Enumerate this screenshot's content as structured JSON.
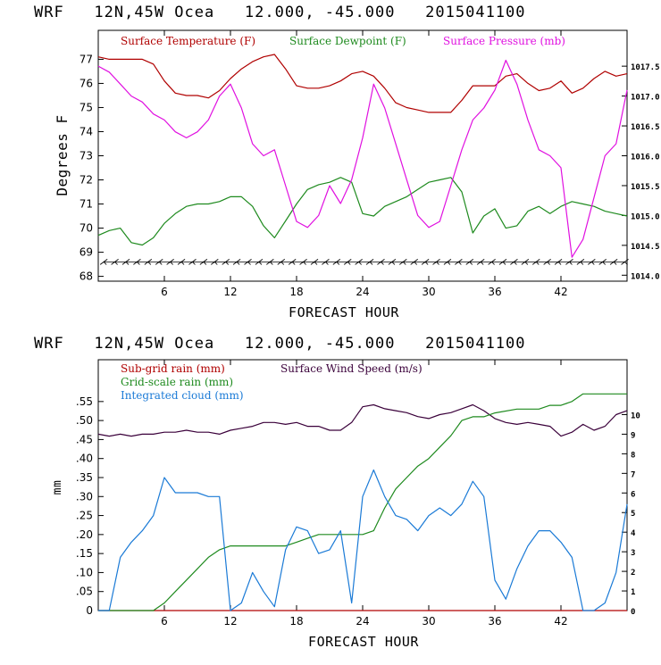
{
  "colors": {
    "temperature": "#b00000",
    "dewpoint": "#1e8a1e",
    "pressure": "#e010e0",
    "wind_speed": "#3a003a",
    "subgrid_rain": "#b00000",
    "gridscale_rain": "#1e8a1e",
    "cloud": "#1a7ad6",
    "axis": "#000000"
  },
  "chart_data": [
    {
      "type": "line",
      "title": "WRF   12N,45W Ocea   12.000, -45.000   2015041100",
      "xlabel": "FORECAST HOUR",
      "ylabel": "Degrees F",
      "xlim": [
        0,
        48
      ],
      "ylim": [
        67.8,
        78.2
      ],
      "y2lim": [
        1013.9,
        1018.1
      ],
      "xticks": [
        6,
        12,
        18,
        24,
        30,
        36,
        42
      ],
      "yticks": [
        68,
        69,
        70,
        71,
        72,
        73,
        74,
        75,
        76,
        77
      ],
      "y2ticks": [
        1014.0,
        1014.5,
        1015.0,
        1015.5,
        1016.0,
        1016.5,
        1017.0,
        1017.5
      ],
      "legend": [
        "Surface Temperature (F)",
        "Surface Dewpoint (F)",
        "Surface Pressure (mb)"
      ],
      "series": [
        {
          "name": "Surface Temperature (F)",
          "axis": "left",
          "color_key": "temperature",
          "x": [
            0,
            1,
            2,
            3,
            4,
            5,
            6,
            7,
            8,
            9,
            10,
            11,
            12,
            13,
            14,
            15,
            16,
            17,
            18,
            19,
            20,
            21,
            22,
            23,
            24,
            25,
            26,
            27,
            28,
            29,
            30,
            31,
            32,
            33,
            34,
            35,
            36,
            37,
            38,
            39,
            40,
            41,
            42,
            43,
            44,
            45,
            46,
            47,
            48
          ],
          "y": [
            77.1,
            77.0,
            77.0,
            77.0,
            77.0,
            76.8,
            76.1,
            75.6,
            75.5,
            75.5,
            75.4,
            75.7,
            76.2,
            76.6,
            76.9,
            77.1,
            77.2,
            76.6,
            75.9,
            75.8,
            75.8,
            75.9,
            76.1,
            76.4,
            76.5,
            76.3,
            75.8,
            75.2,
            75.0,
            74.9,
            74.8,
            74.8,
            74.8,
            75.3,
            75.9,
            75.9,
            75.9,
            76.3,
            76.4,
            76.0,
            75.7,
            75.8,
            76.1,
            75.6,
            75.8,
            76.2,
            76.5,
            76.3,
            76.4
          ]
        },
        {
          "name": "Surface Dewpoint (F)",
          "axis": "left",
          "color_key": "dewpoint",
          "x": [
            0,
            1,
            2,
            3,
            4,
            5,
            6,
            7,
            8,
            9,
            10,
            11,
            12,
            13,
            14,
            15,
            16,
            17,
            18,
            19,
            20,
            21,
            22,
            23,
            24,
            25,
            26,
            27,
            28,
            29,
            30,
            31,
            32,
            33,
            34,
            35,
            36,
            37,
            38,
            39,
            40,
            41,
            42,
            43,
            44,
            45,
            46,
            47,
            48
          ],
          "y": [
            69.7,
            69.9,
            70.0,
            69.4,
            69.3,
            69.6,
            70.2,
            70.6,
            70.9,
            71.0,
            71.0,
            71.1,
            71.3,
            71.3,
            70.9,
            70.1,
            69.6,
            70.3,
            71.0,
            71.6,
            71.8,
            71.9,
            72.1,
            71.9,
            70.6,
            70.5,
            70.9,
            71.1,
            71.3,
            71.6,
            71.9,
            72.0,
            72.1,
            71.5,
            69.8,
            70.5,
            70.8,
            70.0,
            70.1,
            70.7,
            70.9,
            70.6,
            70.9,
            71.1,
            71.0,
            70.9,
            70.7,
            70.6,
            70.5
          ]
        },
        {
          "name": "Surface Pressure (mb)",
          "axis": "right",
          "color_key": "pressure",
          "x": [
            0,
            1,
            2,
            3,
            4,
            5,
            6,
            7,
            8,
            9,
            10,
            11,
            12,
            13,
            14,
            15,
            16,
            17,
            18,
            19,
            20,
            21,
            22,
            23,
            24,
            25,
            26,
            27,
            28,
            29,
            30,
            31,
            32,
            33,
            34,
            35,
            36,
            37,
            38,
            39,
            40,
            41,
            42,
            43,
            44,
            45,
            46,
            47,
            48
          ],
          "y": [
            1017.5,
            1017.4,
            1017.2,
            1017.0,
            1016.9,
            1016.7,
            1016.6,
            1016.4,
            1016.3,
            1016.4,
            1016.6,
            1017.0,
            1017.2,
            1016.8,
            1016.2,
            1016.0,
            1016.1,
            1015.5,
            1014.9,
            1014.8,
            1015.0,
            1015.5,
            1015.2,
            1015.6,
            1016.3,
            1017.2,
            1016.8,
            1016.2,
            1015.6,
            1015.0,
            1014.8,
            1014.9,
            1015.5,
            1016.1,
            1016.6,
            1016.8,
            1017.1,
            1017.6,
            1017.2,
            1016.6,
            1016.1,
            1016.0,
            1015.8,
            1014.3,
            1014.6,
            1015.3,
            1016.0,
            1016.2,
            1017.1
          ]
        }
      ],
      "wind_barbs": {
        "y": 68.6,
        "count": 48
      }
    },
    {
      "type": "line",
      "title": "WRF   12N,45W Ocea   12.000, -45.000   2015041100",
      "xlabel": "FORECAST HOUR",
      "ylabel": "mm",
      "xlim": [
        0,
        48
      ],
      "ylim": [
        0,
        0.66
      ],
      "y2lim": [
        0,
        12.8
      ],
      "xticks": [
        6,
        12,
        18,
        24,
        30,
        36,
        42
      ],
      "yticks": [
        0,
        0.05,
        0.1,
        0.15,
        0.2,
        0.25,
        0.3,
        0.35,
        0.4,
        0.45,
        0.5,
        0.55
      ],
      "ytick_labels": [
        "0",
        ".05",
        ".10",
        ".15",
        ".20",
        ".25",
        ".30",
        ".35",
        ".40",
        ".45",
        ".50",
        ".55"
      ],
      "y2ticks": [
        0,
        1,
        2,
        3,
        4,
        5,
        6,
        7,
        8,
        9,
        10
      ],
      "legend": [
        "Sub-grid rain (mm)",
        "Surface Wind Speed (m/s)",
        "Grid-scale rain (mm)",
        "Integrated cloud (mm)"
      ],
      "series": [
        {
          "name": "Sub-grid rain (mm)",
          "axis": "left",
          "color_key": "subgrid_rain",
          "x": [
            0,
            48
          ],
          "y": [
            0,
            0
          ]
        },
        {
          "name": "Surface Wind Speed (m/s)",
          "axis": "right",
          "color_key": "wind_speed",
          "x": [
            0,
            1,
            2,
            3,
            4,
            5,
            6,
            7,
            8,
            9,
            10,
            11,
            12,
            13,
            14,
            15,
            16,
            17,
            18,
            19,
            20,
            21,
            22,
            23,
            24,
            25,
            26,
            27,
            28,
            29,
            30,
            31,
            32,
            33,
            34,
            35,
            36,
            37,
            38,
            39,
            40,
            41,
            42,
            43,
            44,
            45,
            46,
            47,
            48
          ],
          "y": [
            9.0,
            8.9,
            9.0,
            8.9,
            9.0,
            9.0,
            9.1,
            9.1,
            9.2,
            9.1,
            9.1,
            9.0,
            9.2,
            9.3,
            9.4,
            9.6,
            9.6,
            9.5,
            9.6,
            9.4,
            9.4,
            9.2,
            9.2,
            9.6,
            10.4,
            10.5,
            10.3,
            10.2,
            10.1,
            9.9,
            9.8,
            10.0,
            10.1,
            10.3,
            10.5,
            10.2,
            9.8,
            9.6,
            9.5,
            9.6,
            9.5,
            9.4,
            8.9,
            9.1,
            9.5,
            9.2,
            9.4,
            10.0,
            10.2
          ]
        },
        {
          "name": "Grid-scale rain (mm)",
          "axis": "left",
          "color_key": "gridscale_rain",
          "x": [
            0,
            5,
            6,
            7,
            8,
            9,
            10,
            11,
            12,
            14,
            16,
            17,
            18,
            19,
            20,
            22,
            23,
            24,
            25,
            26,
            27,
            28,
            29,
            30,
            31,
            32,
            33,
            34,
            35,
            36,
            38,
            40,
            41,
            42,
            43,
            44,
            46,
            48
          ],
          "y": [
            0,
            0,
            0.02,
            0.05,
            0.08,
            0.11,
            0.14,
            0.16,
            0.17,
            0.17,
            0.17,
            0.17,
            0.18,
            0.19,
            0.2,
            0.2,
            0.2,
            0.2,
            0.21,
            0.27,
            0.32,
            0.35,
            0.38,
            0.4,
            0.43,
            0.46,
            0.5,
            0.51,
            0.51,
            0.52,
            0.53,
            0.53,
            0.54,
            0.54,
            0.55,
            0.57,
            0.57,
            0.57
          ]
        },
        {
          "name": "Integrated cloud (mm)",
          "axis": "left",
          "color_key": "cloud",
          "x": [
            0,
            1,
            2,
            3,
            4,
            5,
            6,
            7,
            8,
            9,
            10,
            11,
            12,
            13,
            14,
            15,
            16,
            17,
            18,
            19,
            20,
            21,
            22,
            23,
            24,
            25,
            26,
            27,
            28,
            29,
            30,
            31,
            32,
            33,
            34,
            35,
            36,
            37,
            38,
            39,
            40,
            41,
            42,
            43,
            44,
            45,
            46,
            47,
            48
          ],
          "y": [
            0.0,
            0.0,
            0.14,
            0.18,
            0.21,
            0.25,
            0.35,
            0.31,
            0.31,
            0.31,
            0.3,
            0.3,
            0.0,
            0.02,
            0.1,
            0.05,
            0.01,
            0.16,
            0.22,
            0.21,
            0.15,
            0.16,
            0.21,
            0.02,
            0.3,
            0.37,
            0.3,
            0.25,
            0.24,
            0.21,
            0.25,
            0.27,
            0.25,
            0.28,
            0.34,
            0.3,
            0.08,
            0.03,
            0.11,
            0.17,
            0.21,
            0.21,
            0.18,
            0.14,
            0.0,
            0.0,
            0.02,
            0.1,
            0.28
          ]
        }
      ]
    }
  ]
}
